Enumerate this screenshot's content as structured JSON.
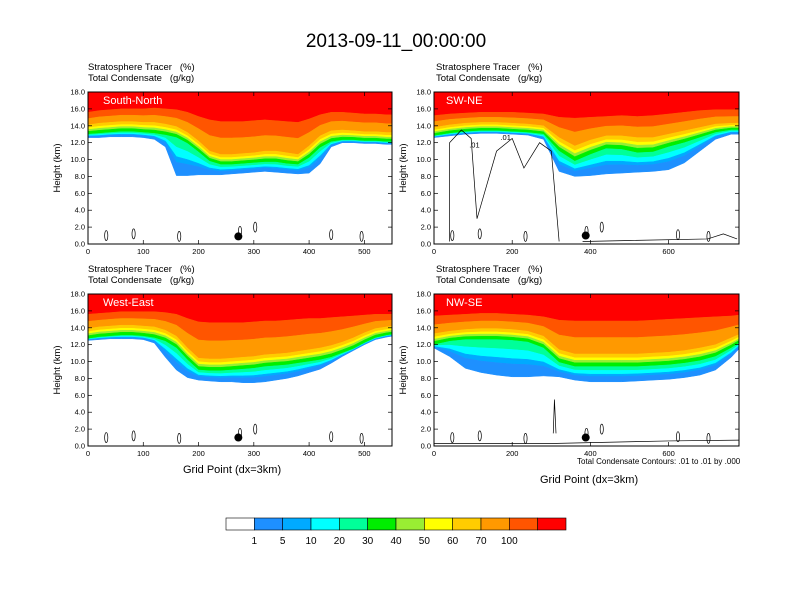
{
  "page_title": "2013-09-11_00:00:00",
  "meta": {
    "tracer_label": "Stratosphere Tracer   (%)",
    "condensate_label": "Total Condensate   (g/kg)"
  },
  "x_axis_label": "Grid Point (dx=3km)",
  "contour_note": "Total Condensate Contours: .01 to .01 by .000",
  "chart_data": [
    {
      "type": "heatmap",
      "title": "South-North",
      "ylabel": "Height (km)",
      "xlim": [
        0,
        550
      ],
      "ylim": [
        0,
        18
      ],
      "yticks": [
        "0.0",
        "2.0",
        "4.0",
        "6.0",
        "8.0",
        "10.0",
        "12.0",
        "14.0",
        "16.0",
        "18.0"
      ],
      "xticks": [
        0,
        100,
        200,
        300,
        400,
        500
      ],
      "marker": {
        "x": 272,
        "y": 0.9
      },
      "bands": {
        "x": [
          0,
          20,
          40,
          60,
          80,
          100,
          120,
          140,
          160,
          180,
          200,
          220,
          240,
          260,
          280,
          300,
          320,
          340,
          360,
          380,
          400,
          420,
          440,
          460,
          480,
          500,
          520,
          540,
          550
        ],
        "red_bottom": [
          15.6,
          15.8,
          15.9,
          16.0,
          16.0,
          16.0,
          16.1,
          16.0,
          15.9,
          15.6,
          15.1,
          14.7,
          14.5,
          14.5,
          14.5,
          14.6,
          14.7,
          14.6,
          14.5,
          14.4,
          14.8,
          15.3,
          15.6,
          15.6,
          15.5,
          15.4,
          15.4,
          15.3,
          15.3
        ],
        "orange_bottom": [
          14.1,
          14.3,
          14.4,
          14.5,
          14.5,
          14.4,
          14.4,
          14.2,
          13.9,
          13.2,
          12.2,
          11.0,
          10.6,
          10.6,
          10.7,
          10.8,
          11.0,
          11.0,
          10.8,
          10.6,
          11.6,
          12.8,
          13.4,
          13.5,
          13.4,
          13.3,
          13.3,
          13.2,
          13.2
        ],
        "green_bottom": [
          13.0,
          13.1,
          13.2,
          13.3,
          13.3,
          13.2,
          13.1,
          12.9,
          12.6,
          11.9,
          10.9,
          9.8,
          9.4,
          9.4,
          9.5,
          9.6,
          9.7,
          9.7,
          9.5,
          9.4,
          10.2,
          11.4,
          12.1,
          12.3,
          12.3,
          12.2,
          12.2,
          12.1,
          12.1
        ],
        "blue_bottom": [
          12.6,
          12.6,
          12.7,
          12.7,
          12.7,
          12.6,
          12.4,
          11.5,
          8.1,
          8.1,
          8.2,
          8.2,
          8.2,
          8.3,
          8.4,
          8.5,
          8.6,
          8.5,
          8.4,
          8.3,
          8.4,
          9.5,
          11.5,
          12.0,
          12.0,
          11.9,
          11.9,
          11.8,
          11.8
        ]
      }
    },
    {
      "type": "heatmap",
      "title": "SW-NE",
      "ylabel": "Height (km)",
      "xlim": [
        0,
        780
      ],
      "ylim": [
        0,
        18
      ],
      "yticks": [
        "0.0",
        "2.0",
        "4.0",
        "6.0",
        "8.0",
        "10.0",
        "12.0",
        "14.0",
        "16.0",
        "18.0"
      ],
      "xticks": [
        0,
        200,
        400,
        600
      ],
      "marker": {
        "x": 388,
        "y": 1.0
      },
      "contour_labels": [
        ".01",
        ".01"
      ],
      "bands": {
        "x": [
          0,
          40,
          80,
          120,
          160,
          200,
          240,
          280,
          320,
          360,
          400,
          440,
          480,
          520,
          560,
          600,
          640,
          680,
          720,
          760,
          780
        ],
        "red_bottom": [
          15.2,
          15.4,
          15.5,
          15.6,
          15.6,
          15.6,
          15.5,
          15.4,
          15.0,
          14.9,
          15.0,
          15.1,
          15.2,
          15.1,
          15.2,
          15.4,
          15.6,
          15.8,
          15.9,
          15.9,
          15.9
        ],
        "orange_bottom": [
          13.8,
          14.1,
          14.3,
          14.4,
          14.4,
          14.3,
          14.2,
          14.0,
          12.6,
          11.6,
          12.3,
          12.8,
          12.8,
          12.6,
          12.6,
          13.0,
          13.4,
          13.8,
          14.2,
          14.3,
          14.3
        ],
        "green_bottom": [
          12.8,
          13.1,
          13.3,
          13.4,
          13.4,
          13.3,
          13.2,
          13.0,
          11.0,
          9.8,
          10.6,
          11.3,
          11.2,
          10.8,
          10.9,
          11.5,
          12.0,
          12.6,
          13.2,
          13.5,
          13.5
        ],
        "blue_bottom": [
          12.6,
          12.8,
          13.0,
          13.1,
          13.1,
          13.0,
          12.9,
          12.4,
          8.6,
          8.0,
          8.1,
          8.3,
          8.4,
          8.5,
          8.6,
          8.8,
          9.6,
          11.0,
          12.4,
          13.0,
          13.0
        ]
      }
    },
    {
      "type": "heatmap",
      "title": "West-East",
      "ylabel": "Height (km)",
      "xlim": [
        0,
        550
      ],
      "ylim": [
        0,
        18
      ],
      "yticks": [
        "0.0",
        "2.0",
        "4.0",
        "6.0",
        "8.0",
        "10.0",
        "12.0",
        "14.0",
        "16.0",
        "18.0"
      ],
      "xticks": [
        0,
        100,
        200,
        300,
        400,
        500
      ],
      "marker": {
        "x": 272,
        "y": 1.0
      },
      "bands": {
        "x": [
          0,
          20,
          40,
          60,
          80,
          100,
          120,
          140,
          160,
          180,
          200,
          220,
          240,
          260,
          280,
          300,
          320,
          340,
          360,
          380,
          400,
          420,
          440,
          460,
          480,
          500,
          520,
          540,
          550
        ],
        "red_bottom": [
          15.6,
          15.7,
          15.8,
          15.9,
          15.9,
          15.9,
          15.9,
          15.8,
          15.6,
          15.1,
          14.7,
          14.6,
          14.6,
          14.6,
          14.6,
          14.7,
          14.8,
          14.8,
          14.9,
          15.0,
          15.1,
          15.1,
          15.2,
          15.3,
          15.4,
          15.5,
          15.6,
          15.6,
          15.6
        ],
        "orange_bottom": [
          13.9,
          14.1,
          14.2,
          14.3,
          14.3,
          14.2,
          14.1,
          13.7,
          13.0,
          11.6,
          10.4,
          10.3,
          10.3,
          10.4,
          10.5,
          10.6,
          10.8,
          10.9,
          11.0,
          11.2,
          11.4,
          11.6,
          11.9,
          12.3,
          12.8,
          13.4,
          13.9,
          14.1,
          14.2
        ],
        "green_bottom": [
          12.7,
          12.9,
          13.0,
          13.1,
          13.1,
          13.0,
          12.8,
          12.4,
          11.6,
          10.2,
          9.0,
          8.9,
          8.9,
          9.0,
          9.1,
          9.2,
          9.4,
          9.5,
          9.6,
          9.8,
          10.0,
          10.2,
          10.5,
          11.0,
          11.5,
          12.2,
          12.8,
          13.1,
          13.2
        ],
        "blue_bottom": [
          12.5,
          12.6,
          12.7,
          12.7,
          12.7,
          12.6,
          12.2,
          10.5,
          9.0,
          8.1,
          7.8,
          7.7,
          7.6,
          7.6,
          7.5,
          7.5,
          7.6,
          7.8,
          8.0,
          8.3,
          8.7,
          9.1,
          9.8,
          10.6,
          11.3,
          12.0,
          12.6,
          12.9,
          13.0
        ]
      }
    },
    {
      "type": "heatmap",
      "title": "NW-SE",
      "ylabel": "Height (km)",
      "xlim": [
        0,
        780
      ],
      "ylim": [
        0,
        18
      ],
      "yticks": [
        "0.0",
        "2.0",
        "4.0",
        "6.0",
        "8.0",
        "10.0",
        "12.0",
        "14.0",
        "16.0",
        "18.0"
      ],
      "xticks": [
        0,
        200,
        400,
        600
      ],
      "marker": {
        "x": 388,
        "y": 1.0
      },
      "bands": {
        "x": [
          0,
          40,
          80,
          120,
          160,
          200,
          240,
          280,
          320,
          360,
          400,
          440,
          480,
          520,
          560,
          600,
          640,
          680,
          720,
          760,
          780
        ],
        "red_bottom": [
          15.4,
          15.5,
          15.6,
          15.7,
          15.7,
          15.6,
          15.5,
          15.3,
          14.9,
          14.8,
          14.8,
          14.8,
          14.8,
          14.8,
          14.9,
          15.0,
          15.1,
          15.2,
          15.3,
          15.4,
          15.5
        ],
        "orange_bottom": [
          13.3,
          13.6,
          13.8,
          13.9,
          13.9,
          13.8,
          13.6,
          13.0,
          11.4,
          10.9,
          10.9,
          10.9,
          10.9,
          10.9,
          11.0,
          11.1,
          11.3,
          11.6,
          12.0,
          12.8,
          13.2
        ],
        "green_bottom": [
          12.0,
          12.4,
          12.6,
          12.6,
          12.6,
          12.5,
          12.3,
          11.6,
          9.9,
          9.4,
          9.4,
          9.4,
          9.4,
          9.4,
          9.5,
          9.6,
          9.8,
          10.1,
          10.6,
          11.6,
          12.2
        ],
        "blue_bottom": [
          11.6,
          10.6,
          9.2,
          8.7,
          8.4,
          8.2,
          8.2,
          8.3,
          8.2,
          7.8,
          7.6,
          7.6,
          7.6,
          7.7,
          7.8,
          7.9,
          8.1,
          8.4,
          9.0,
          10.5,
          11.5
        ]
      }
    }
  ],
  "colorbar": {
    "colors": [
      "#ffffff",
      "#1e90ff",
      "#00aaff",
      "#00ffff",
      "#00ff99",
      "#00ee00",
      "#99ee33",
      "#ffff00",
      "#ffcc00",
      "#ff9900",
      "#ff5500",
      "#ff0000"
    ],
    "labels": [
      "1",
      "5",
      "10",
      "20",
      "30",
      "40",
      "50",
      "60",
      "70",
      "100"
    ]
  },
  "colors": {
    "red": "#ff0000",
    "orange_red": "#ff5500",
    "orange": "#ff9900",
    "amber": "#ffcc00",
    "yellow": "#ffff00",
    "lime": "#99ee33",
    "green": "#00ee00",
    "sea_green": "#00ff99",
    "cyan": "#00ffff",
    "sky": "#00aaff",
    "blue": "#1e90ff"
  }
}
